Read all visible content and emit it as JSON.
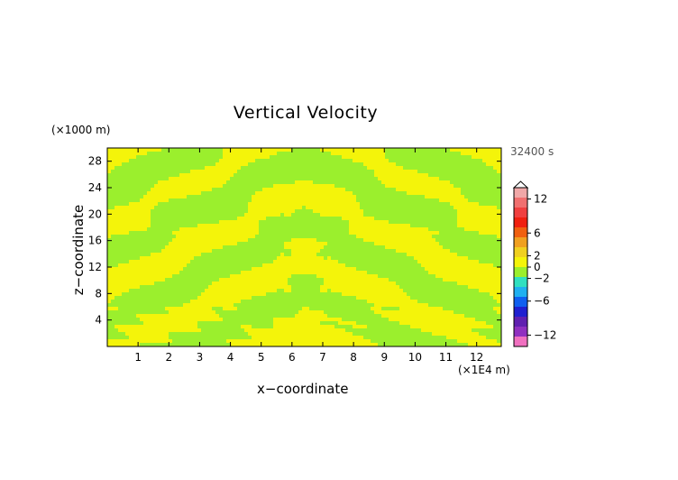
{
  "chart_data": {
    "type": "heatmap",
    "title": "Vertical Velocity",
    "xlabel": "x−coordinate",
    "ylabel": "z−coordinate",
    "x_unit": "(×1E4 m)",
    "y_unit": "(×1000 m)",
    "time_label": "32400 s",
    "xlim": [
      0,
      12.8
    ],
    "ylim": [
      0,
      30
    ],
    "x_ticks": [
      "1",
      "2",
      "3",
      "4",
      "5",
      "6",
      "7",
      "8",
      "9",
      "10",
      "11",
      "12"
    ],
    "y_ticks": [
      "4",
      "8",
      "12",
      "16",
      "20",
      "24",
      "28"
    ],
    "colorbar": {
      "tick_labels": [
        "12",
        "6",
        "2",
        "0",
        "−2",
        "−6",
        "−12"
      ],
      "range": [
        -14,
        14
      ],
      "colors": [
        "#f070c0",
        "#9030c0",
        "#6020b0",
        "#2020d0",
        "#1060f0",
        "#20b0f0",
        "#30e0c0",
        "#9bef2d",
        "#f4f40a",
        "#f0d020",
        "#f0a020",
        "#f06010",
        "#f02010",
        "#f04040",
        "#f07070",
        "#f0a8a8"
      ]
    },
    "field": {
      "description_levels": [
        "0",
        "2"
      ],
      "low_color": "#9bef2d",
      "high_color": "#f4f40a"
    }
  }
}
